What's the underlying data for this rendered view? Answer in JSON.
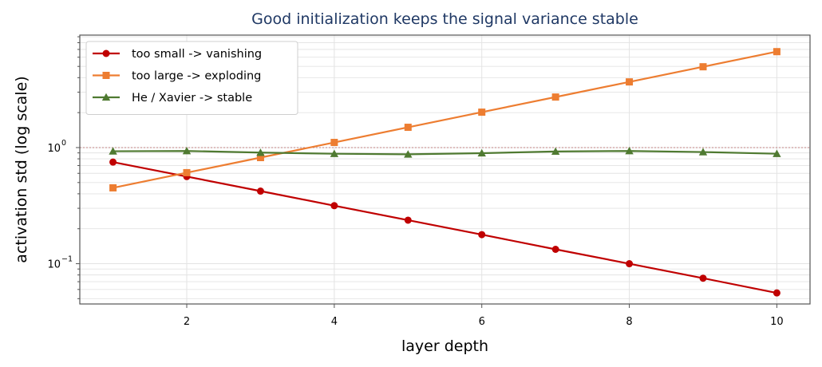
{
  "chart_data": {
    "type": "line",
    "title": "Good initialization keeps the signal variance stable",
    "xlabel": "layer depth",
    "ylabel": "activation std (log scale)",
    "x": [
      1,
      2,
      3,
      4,
      5,
      6,
      7,
      8,
      9,
      10
    ],
    "xlim": [
      0.55,
      10.45
    ],
    "ylim": [
      0.045,
      9.3
    ],
    "yscale": "log",
    "xticks": [
      2,
      4,
      6,
      8,
      10
    ],
    "xtick_labels": [
      "2",
      "4",
      "6",
      "8",
      "10"
    ],
    "yticks": [
      0.1,
      1
    ],
    "ytick_mantissa": [
      "10",
      "10"
    ],
    "ytick_exponent": [
      "−1",
      "0"
    ],
    "grid": true,
    "legend_position": "top-left",
    "reference_line": {
      "y": 1.0,
      "style": "dotted",
      "color": "#c08080"
    },
    "series": [
      {
        "name": "too small -> vanishing",
        "marker": "circle",
        "color": "#c00000",
        "values": [
          0.75,
          0.563,
          0.422,
          0.316,
          0.237,
          0.178,
          0.133,
          0.1,
          0.075,
          0.056
        ]
      },
      {
        "name": "too large -> exploding",
        "marker": "square",
        "color": "#ed7d31",
        "values": [
          0.45,
          0.608,
          0.82,
          1.107,
          1.495,
          2.018,
          2.724,
          3.677,
          4.964,
          6.7
        ]
      },
      {
        "name": "He / Xavier -> stable",
        "marker": "triangle",
        "color": "#4f7a31",
        "values": [
          0.93,
          0.935,
          0.905,
          0.885,
          0.875,
          0.895,
          0.925,
          0.935,
          0.915,
          0.885
        ]
      }
    ],
    "colors": {
      "title": "#1f3864",
      "axes": "#555555",
      "grid": "#e3e3e3"
    }
  }
}
